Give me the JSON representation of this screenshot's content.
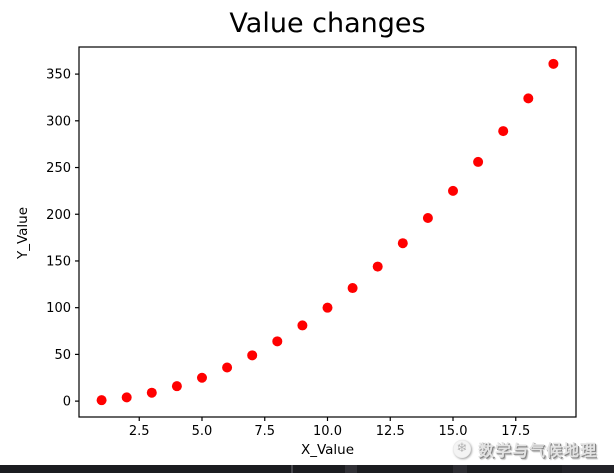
{
  "chart_data": {
    "type": "scatter",
    "title": "Value changes",
    "xlabel": "X_Value",
    "ylabel": "Y_Value",
    "x": [
      1,
      2,
      3,
      4,
      5,
      6,
      7,
      8,
      9,
      10,
      11,
      12,
      13,
      14,
      15,
      16,
      17,
      18,
      19
    ],
    "y": [
      1,
      4,
      9,
      16,
      25,
      36,
      49,
      64,
      81,
      100,
      121,
      144,
      169,
      196,
      225,
      256,
      289,
      324,
      361
    ],
    "marker_color": "#ff0000",
    "marker_shape": "circle",
    "xlim": [
      0.1,
      19.9
    ],
    "ylim": [
      -17,
      379
    ],
    "xticks": [
      2.5,
      5.0,
      7.5,
      10.0,
      12.5,
      15.0,
      17.5
    ],
    "xtick_labels": [
      "2.5",
      "5.0",
      "7.5",
      "10.0",
      "12.5",
      "15.0",
      "17.5"
    ],
    "yticks": [
      0,
      50,
      100,
      150,
      200,
      250,
      300,
      350
    ],
    "ytick_labels": [
      "0",
      "50",
      "100",
      "150",
      "200",
      "250",
      "300",
      "350"
    ],
    "grid": false,
    "legend": null,
    "axis_color": "#000000",
    "tick_label_color": "#000000"
  },
  "watermark": {
    "text": "数学与气候地理",
    "icon": "snowflake-logo-icon",
    "icon_glyph": "❄",
    "text_color": "#e3e3e3"
  },
  "bottom_bar": {
    "base_color": "#1b1c20",
    "segments": [
      {
        "x": 291,
        "w": 2,
        "color": "#46464c"
      },
      {
        "x": 345,
        "w": 12,
        "color": "#303036"
      },
      {
        "x": 453,
        "w": 14,
        "color": "#2c2c32"
      },
      {
        "x": 562,
        "w": 52,
        "color": "#232329"
      }
    ]
  }
}
